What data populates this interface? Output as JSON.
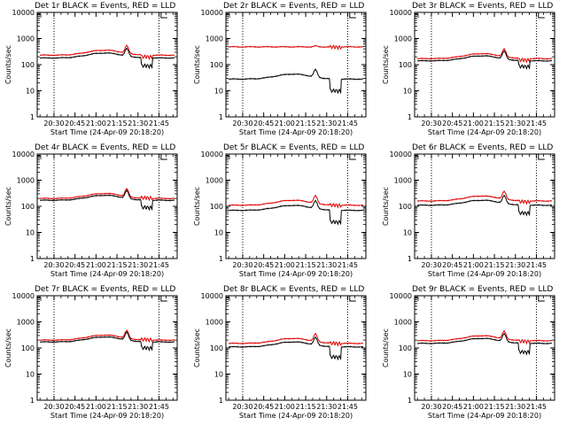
{
  "chart_data": {
    "type": "line",
    "x_ticks": [
      "20:30",
      "20:45",
      "21:00",
      "21:15",
      "21:30",
      "21:45"
    ],
    "y_ticks": [
      "1",
      "10",
      "100",
      "1000",
      "10000"
    ],
    "ylabel": "Counts/sec",
    "xlabel": "Start Time (24-Apr-09 20:18:20)",
    "yscale": "log",
    "ylim": [
      1,
      10000
    ],
    "xlim_minutes": [
      18,
      118
    ],
    "vlines_minutes": [
      30,
      105
    ],
    "series_colors": {
      "Events": "#000000",
      "LLD": "#e00000"
    },
    "panels": [
      {
        "id": "d1",
        "title": "Det 1r BLACK = Events, RED = LLD",
        "events_base": 180,
        "lld_base": 230,
        "dip_events": 90,
        "dip_lld": 200,
        "flat_lld": false
      },
      {
        "id": "d2",
        "title": "Det 2r BLACK = Events, RED = LLD",
        "events_base": 28,
        "lld_base": 480,
        "dip_events": 10,
        "dip_lld": 470,
        "flat_lld": true
      },
      {
        "id": "d3",
        "title": "Det 3r BLACK = Events, RED = LLD",
        "events_base": 140,
        "lld_base": 170,
        "dip_events": 85,
        "dip_lld": 150,
        "flat_lld": false
      },
      {
        "id": "d4",
        "title": "Det 4r BLACK = Events, RED = LLD",
        "events_base": 170,
        "lld_base": 200,
        "dip_events": 90,
        "dip_lld": 210,
        "flat_lld": false
      },
      {
        "id": "d5",
        "title": "Det 5r BLACK = Events, RED = LLD",
        "events_base": 70,
        "lld_base": 110,
        "dip_events": 25,
        "dip_lld": 110,
        "flat_lld": false
      },
      {
        "id": "d6",
        "title": "Det 6r BLACK = Events, RED = LLD",
        "events_base": 110,
        "lld_base": 160,
        "dip_events": 55,
        "dip_lld": 150,
        "flat_lld": false
      },
      {
        "id": "d7",
        "title": "Det 7r BLACK = Events, RED = LLD",
        "events_base": 170,
        "lld_base": 200,
        "dip_events": 100,
        "dip_lld": 210,
        "flat_lld": false
      },
      {
        "id": "d8",
        "title": "Det 8r BLACK = Events, RED = LLD",
        "events_base": 110,
        "lld_base": 150,
        "dip_events": 45,
        "dip_lld": 150,
        "flat_lld": false
      },
      {
        "id": "d9",
        "title": "Det 9r BLACK = Events, RED = LLD",
        "events_base": 150,
        "lld_base": 190,
        "dip_events": 70,
        "dip_lld": 180,
        "flat_lld": false
      }
    ]
  }
}
